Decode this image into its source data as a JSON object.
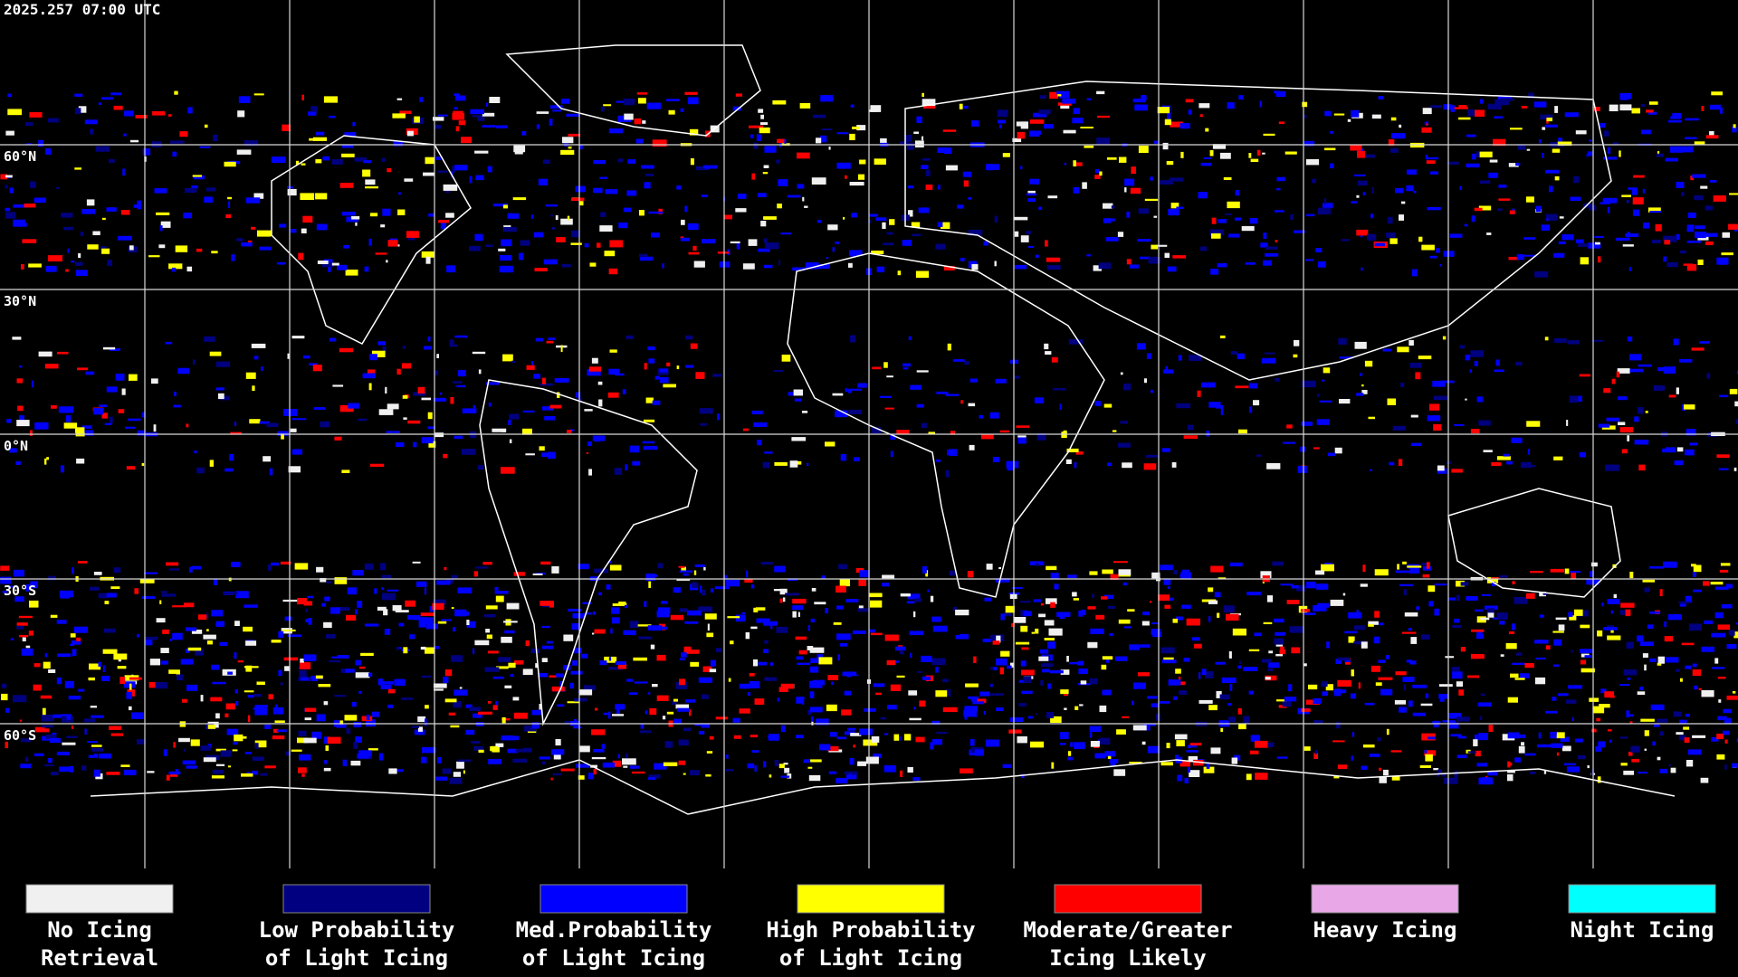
{
  "header": {
    "timestamp": "2025.257 07:00 UTC"
  },
  "map": {
    "lat_labels": [
      "60°N",
      "30°N",
      "0°N",
      "30°S",
      "60°S"
    ]
  },
  "legend": [
    {
      "lines": [
        "No Icing",
        "Retrieval"
      ],
      "color": "#f0f0f0"
    },
    {
      "lines": [
        "Low Probability",
        "of Light Icing"
      ],
      "color": "#000080"
    },
    {
      "lines": [
        "Med.Probability",
        "of Light Icing"
      ],
      "color": "#0000ff"
    },
    {
      "lines": [
        "High Probability",
        "of Light Icing"
      ],
      "color": "#ffff00"
    },
    {
      "lines": [
        "Moderate/Greater",
        "Icing Likely"
      ],
      "color": "#ff0000"
    },
    {
      "lines": [
        "Heavy Icing"
      ],
      "color": "#e8a8e8"
    },
    {
      "lines": [
        "Night Icing"
      ],
      "color": "#00ffff"
    }
  ]
}
